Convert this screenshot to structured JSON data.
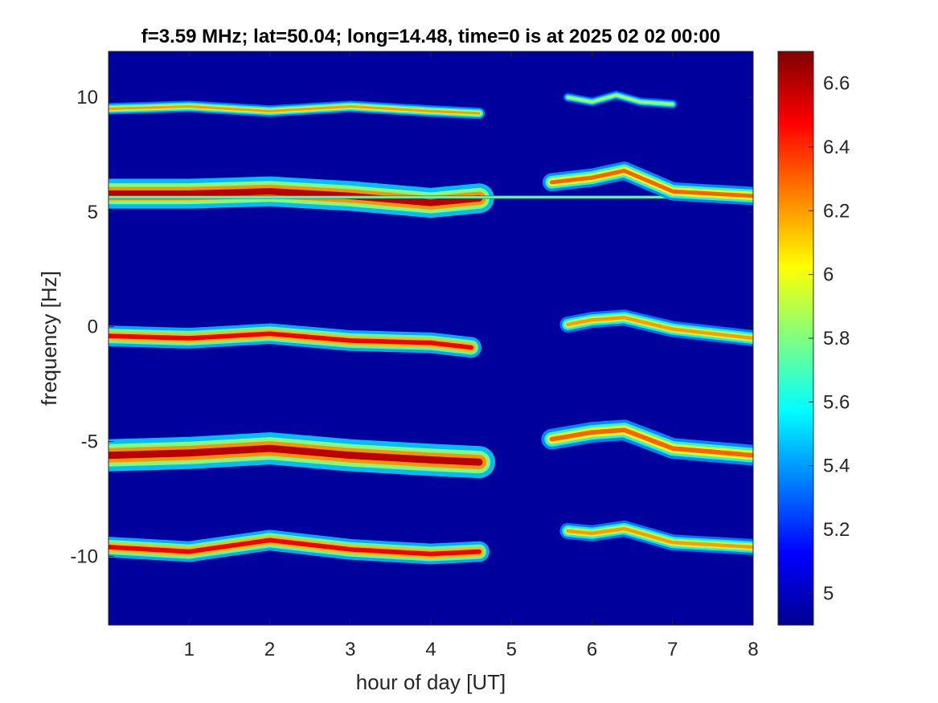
{
  "chart_data": {
    "type": "heatmap",
    "title": "f=3.59 MHz;  lat=50.04; long=14.48, time=0 is at 2025 02 02 00:00",
    "xlabel": "hour of day [UT]",
    "ylabel": "frequency [Hz]",
    "xlim": [
      0,
      8
    ],
    "ylim": [
      -13,
      12
    ],
    "x_ticks": [
      "1",
      "2",
      "3",
      "4",
      "5",
      "6",
      "7",
      "8"
    ],
    "y_ticks": [
      "10",
      "5",
      "0",
      "-5",
      "-10"
    ],
    "colorbar": {
      "colormap": "jet",
      "limits": [
        4.9,
        6.7
      ],
      "ticks": [
        "5",
        "5.2",
        "5.4",
        "5.6",
        "5.8",
        "6",
        "6.2",
        "6.4",
        "6.6"
      ]
    },
    "background_level": 4.95,
    "traces": [
      {
        "x": [
          0.0,
          1.0,
          2.0,
          3.0,
          4.0,
          4.6
        ],
        "y": [
          9.5,
          9.6,
          9.4,
          9.6,
          9.4,
          9.3
        ],
        "level": 6.2,
        "spread": 0.5
      },
      {
        "x": [
          5.7,
          6.0,
          6.3,
          6.6,
          7.0
        ],
        "y": [
          10.0,
          9.8,
          10.1,
          9.8,
          9.7
        ],
        "level": 5.9,
        "spread": 0.4
      },
      {
        "x": [
          0.0,
          1.0,
          2.0,
          3.0,
          4.0,
          4.6
        ],
        "y": [
          5.8,
          5.8,
          5.9,
          5.7,
          5.4,
          5.6
        ],
        "level": 6.6,
        "spread": 1.3
      },
      {
        "x": [
          0.0,
          8.0
        ],
        "y": [
          5.65,
          5.65
        ],
        "level": 6.1,
        "spread": 0.15
      },
      {
        "x": [
          5.5,
          6.0,
          6.4,
          7.0,
          7.5,
          8.0
        ],
        "y": [
          6.3,
          6.5,
          6.8,
          5.9,
          5.8,
          5.7
        ],
        "level": 6.3,
        "spread": 0.8
      },
      {
        "x": [
          0.0,
          1.0,
          2.0,
          3.0,
          4.0,
          4.5
        ],
        "y": [
          -0.4,
          -0.5,
          -0.3,
          -0.6,
          -0.7,
          -0.9
        ],
        "level": 6.5,
        "spread": 0.9
      },
      {
        "x": [
          5.7,
          6.0,
          6.4,
          7.0,
          8.0
        ],
        "y": [
          0.1,
          0.3,
          0.4,
          -0.1,
          -0.5
        ],
        "level": 6.2,
        "spread": 0.7
      },
      {
        "x": [
          0.0,
          1.0,
          2.0,
          3.0,
          4.0,
          4.6
        ],
        "y": [
          -5.6,
          -5.5,
          -5.3,
          -5.6,
          -5.8,
          -5.9
        ],
        "level": 6.6,
        "spread": 1.4
      },
      {
        "x": [
          5.5,
          6.0,
          6.4,
          7.0,
          8.0
        ],
        "y": [
          -4.9,
          -4.6,
          -4.5,
          -5.3,
          -5.6
        ],
        "level": 6.3,
        "spread": 0.9
      },
      {
        "x": [
          0.0,
          1.0,
          2.0,
          3.0,
          4.0,
          4.6
        ],
        "y": [
          -9.6,
          -9.8,
          -9.3,
          -9.7,
          -9.9,
          -9.8
        ],
        "level": 6.5,
        "spread": 0.9
      },
      {
        "x": [
          5.7,
          6.0,
          6.4,
          7.0,
          8.0
        ],
        "y": [
          -8.9,
          -9.0,
          -8.8,
          -9.4,
          -9.6
        ],
        "level": 6.2,
        "spread": 0.7
      }
    ]
  }
}
